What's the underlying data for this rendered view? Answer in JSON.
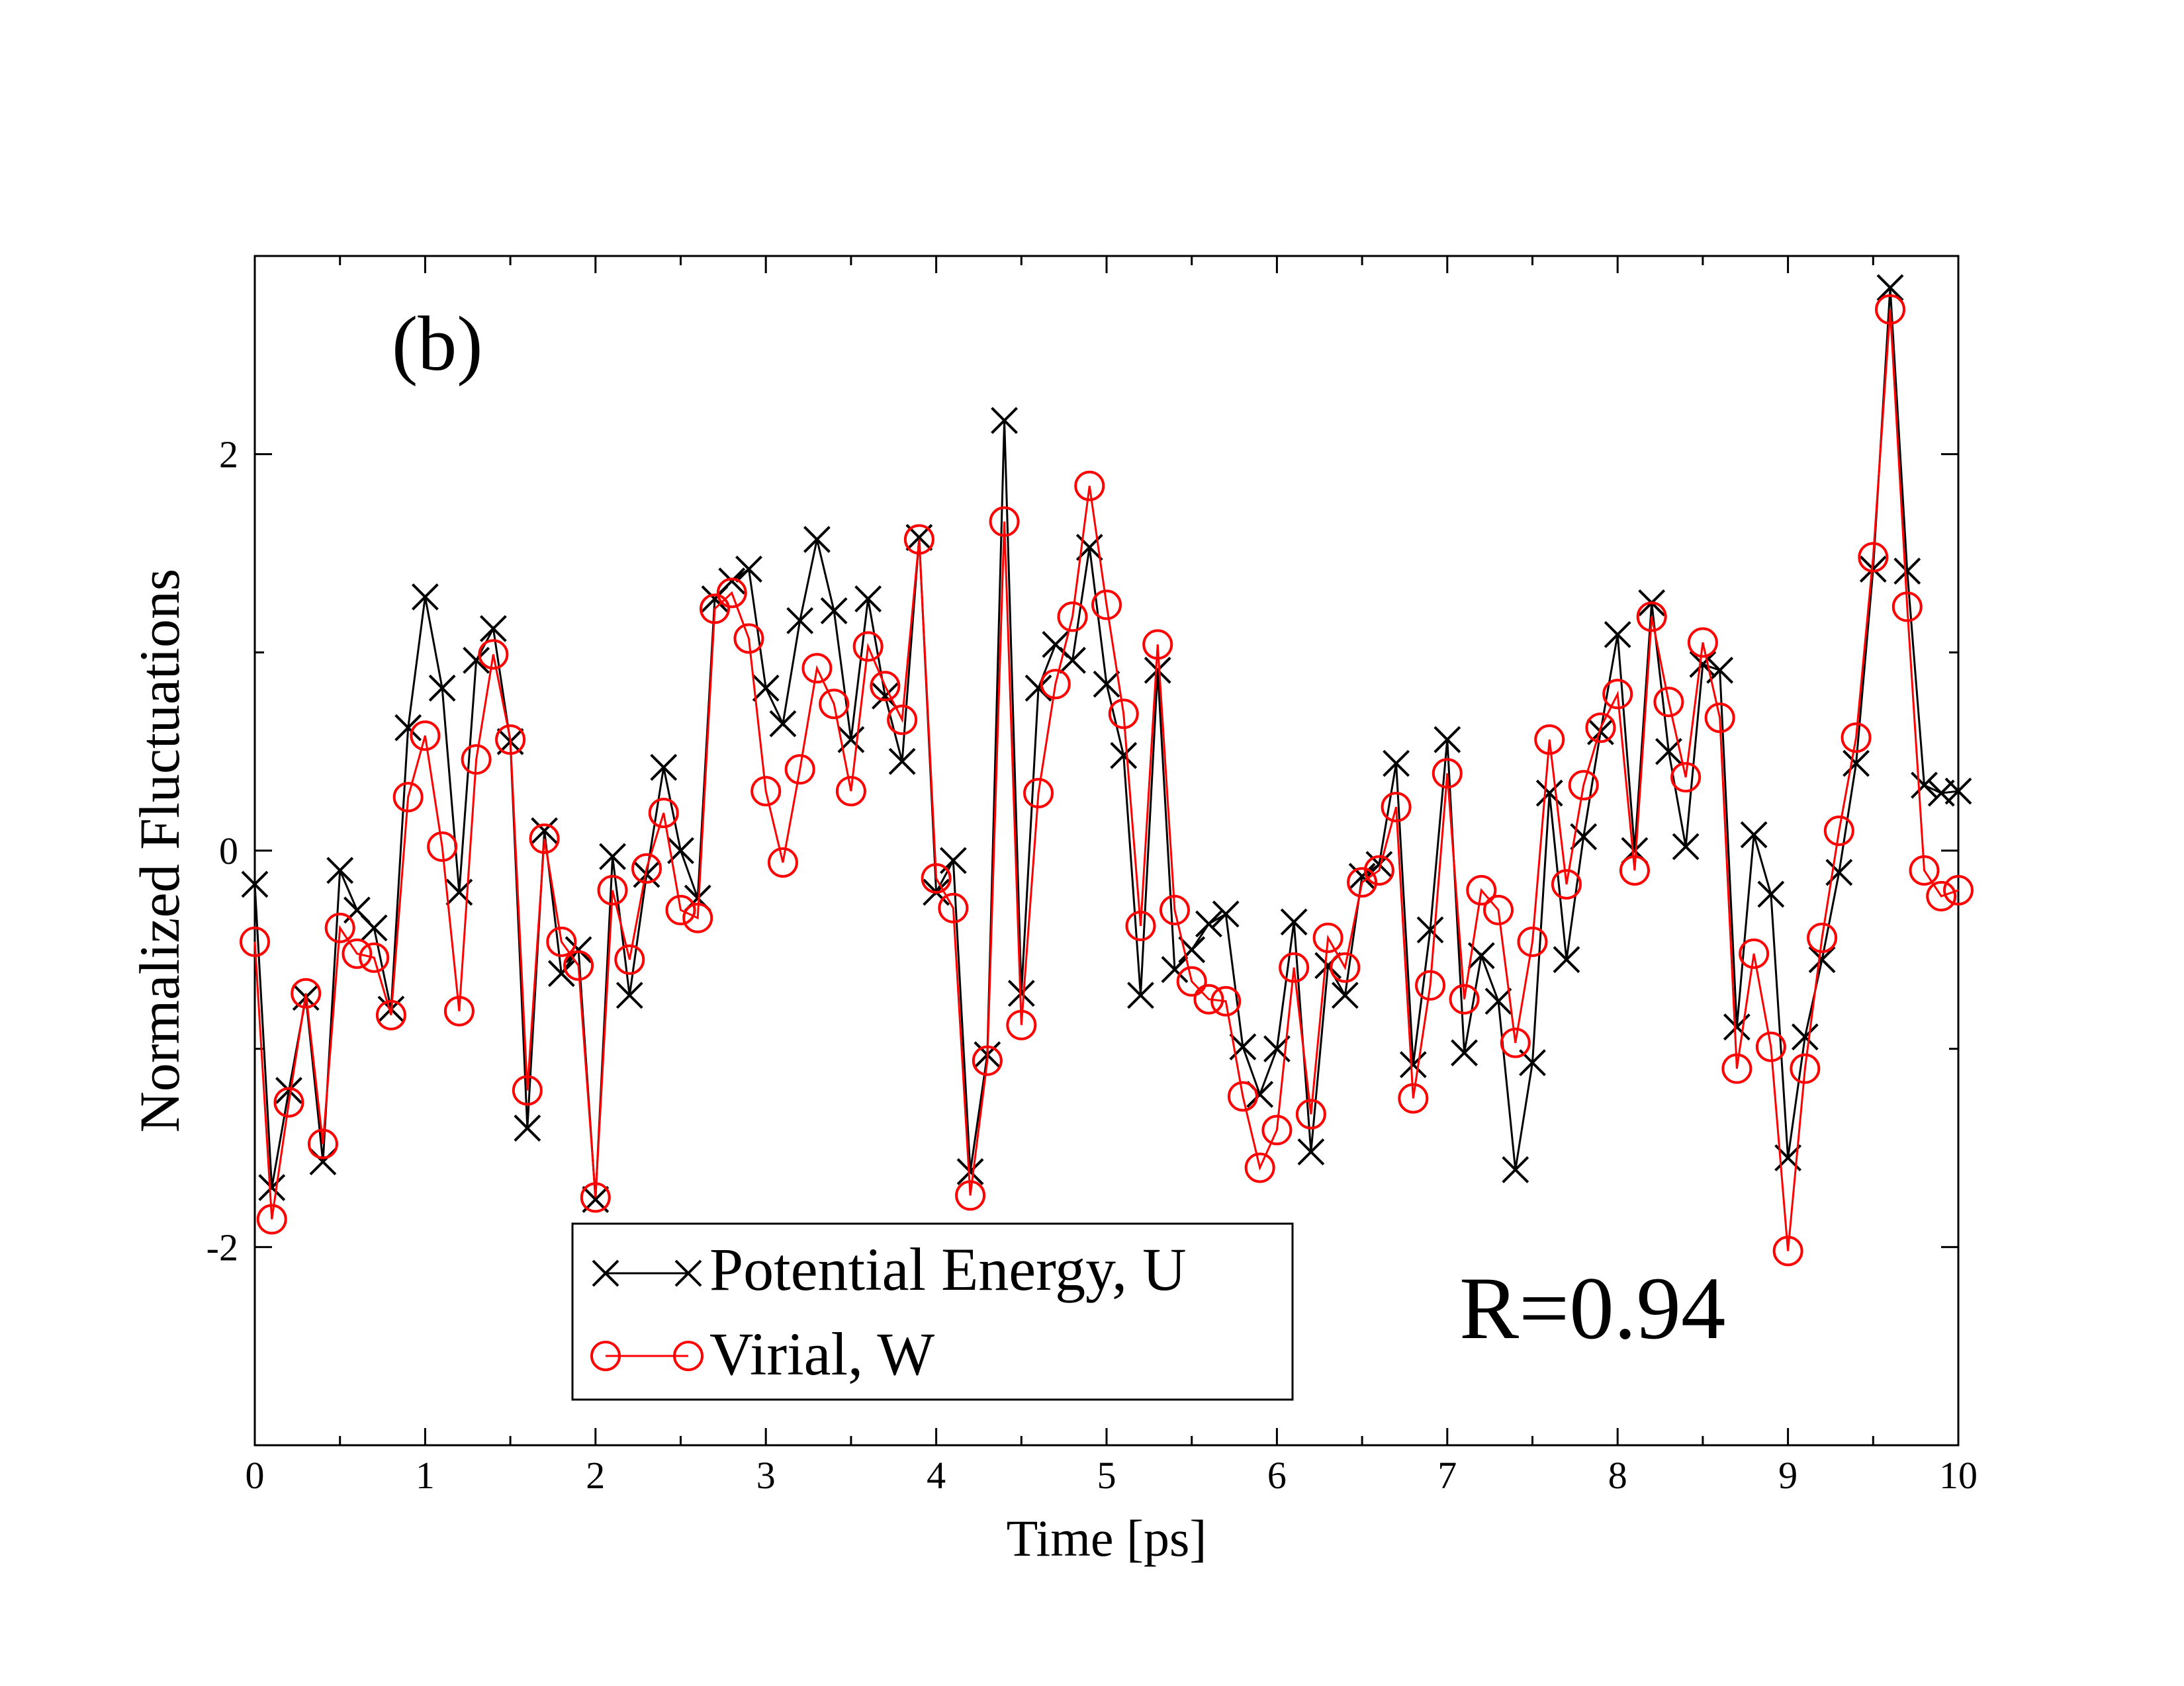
{
  "chart_data": {
    "type": "line",
    "panel_label": "(b)",
    "xlabel": "Time [ps]",
    "ylabel": "Normalized Fluctuations",
    "xlim": [
      0,
      10
    ],
    "ylim": [
      -3,
      3
    ],
    "x_ticks": [
      0,
      1,
      2,
      3,
      4,
      5,
      6,
      7,
      8,
      9,
      10
    ],
    "x_tick_labels": [
      "0",
      "1",
      "2",
      "3",
      "4",
      "5",
      "6",
      "7",
      "8",
      "9",
      "10"
    ],
    "y_ticks": [
      -2,
      0,
      2
    ],
    "y_tick_labels": [
      "-2",
      "0",
      "2"
    ],
    "grid": false,
    "legend_position": "bottom-center",
    "annotation": "R=0.94",
    "x": [
      0,
      0.1,
      0.2,
      0.3,
      0.4,
      0.5,
      0.6,
      0.7,
      0.8,
      0.9,
      1.0,
      1.1,
      1.2,
      1.3,
      1.4,
      1.5,
      1.6,
      1.7,
      1.8,
      1.9,
      2.0,
      2.1,
      2.2,
      2.3,
      2.4,
      2.5,
      2.6,
      2.7,
      2.8,
      2.9,
      3.0,
      3.1,
      3.2,
      3.3,
      3.4,
      3.5,
      3.6,
      3.7,
      3.8,
      3.9,
      4.0,
      4.1,
      4.2,
      4.3,
      4.4,
      4.5,
      4.6,
      4.7,
      4.8,
      4.9,
      5.0,
      5.1,
      5.2,
      5.3,
      5.4,
      5.5,
      5.6,
      5.7,
      5.8,
      5.9,
      6.0,
      6.1,
      6.2,
      6.3,
      6.4,
      6.5,
      6.6,
      6.7,
      6.8,
      6.9,
      7.0,
      7.1,
      7.2,
      7.3,
      7.4,
      7.5,
      7.6,
      7.7,
      7.8,
      7.9,
      8.0,
      8.1,
      8.2,
      8.3,
      8.4,
      8.5,
      8.6,
      8.7,
      8.8,
      8.9,
      9.0,
      9.1,
      9.2,
      9.3,
      9.4,
      9.5,
      9.6,
      9.7,
      9.8,
      9.9,
      10.0
    ],
    "series": [
      {
        "name": "Potential Energy, U",
        "color": "#000000",
        "marker": "x",
        "values": [
          -0.17,
          -1.7,
          -1.21,
          -0.74,
          -1.57,
          -0.1,
          -0.3,
          -0.39,
          -0.8,
          0.62,
          1.28,
          0.82,
          -0.21,
          0.96,
          1.12,
          0.55,
          -1.4,
          0.1,
          -0.62,
          -0.5,
          -1.76,
          -0.03,
          -0.73,
          -0.12,
          0.42,
          0.0,
          -0.24,
          1.27,
          1.36,
          1.42,
          0.82,
          0.64,
          1.16,
          1.57,
          1.21,
          0.56,
          1.27,
          0.78,
          0.45,
          1.58,
          -0.21,
          -0.05,
          -1.62,
          -1.03,
          2.17,
          -0.72,
          0.82,
          1.04,
          0.96,
          1.53,
          0.84,
          0.48,
          -0.73,
          0.91,
          -0.6,
          -0.5,
          -0.37,
          -0.32,
          -0.99,
          -1.23,
          -1.0,
          -0.36,
          -1.52,
          -0.58,
          -0.73,
          -0.13,
          -0.07,
          0.44,
          -1.08,
          -0.4,
          0.56,
          -1.02,
          -0.53,
          -0.76,
          -1.61,
          -1.07,
          0.29,
          -0.55,
          0.07,
          0.6,
          1.09,
          0.0,
          1.25,
          0.5,
          0.02,
          0.94,
          0.91,
          -0.89,
          0.08,
          -0.22,
          -1.55,
          -0.94,
          -0.55,
          -0.11,
          0.44,
          1.42,
          2.84,
          1.41,
          0.33,
          0.29,
          0.3
        ]
      },
      {
        "name": "Virial, W",
        "color": "#ff0000",
        "marker": "o",
        "values": [
          -0.46,
          -1.86,
          -1.27,
          -0.72,
          -1.48,
          -0.39,
          -0.52,
          -0.54,
          -0.83,
          0.27,
          0.58,
          0.02,
          -0.81,
          0.46,
          0.99,
          0.56,
          -1.21,
          0.06,
          -0.46,
          -0.58,
          -1.75,
          -0.2,
          -0.55,
          -0.09,
          0.19,
          -0.3,
          -0.34,
          1.22,
          1.3,
          1.07,
          0.3,
          -0.06,
          0.41,
          0.92,
          0.74,
          0.3,
          1.03,
          0.83,
          0.66,
          1.57,
          -0.14,
          -0.29,
          -1.74,
          -1.06,
          1.66,
          -0.88,
          0.29,
          0.84,
          1.18,
          1.84,
          1.24,
          0.69,
          -0.38,
          1.04,
          -0.3,
          -0.66,
          -0.75,
          -0.76,
          -1.24,
          -1.6,
          -1.41,
          -0.59,
          -1.33,
          -0.44,
          -0.59,
          -0.16,
          -0.1,
          0.22,
          -1.25,
          -0.68,
          0.39,
          -0.75,
          -0.2,
          -0.3,
          -0.97,
          -0.46,
          0.56,
          -0.17,
          0.33,
          0.62,
          0.79,
          -0.1,
          1.18,
          0.75,
          0.37,
          1.05,
          0.67,
          -1.1,
          -0.52,
          -0.99,
          -2.02,
          -1.1,
          -0.44,
          0.1,
          0.57,
          1.48,
          2.73,
          1.23,
          -0.1,
          -0.23,
          -0.2
        ]
      }
    ]
  }
}
